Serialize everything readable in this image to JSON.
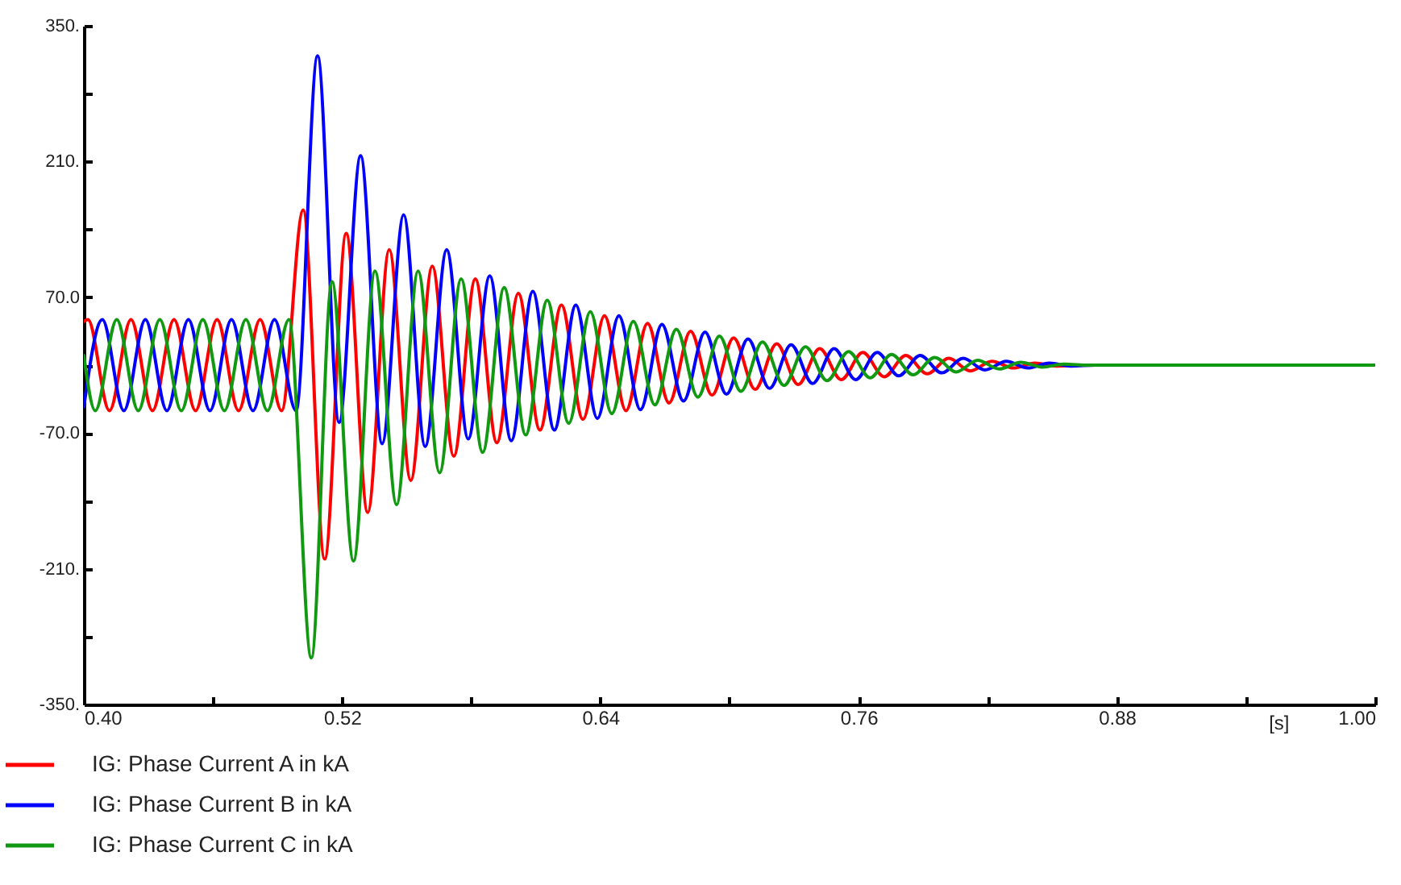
{
  "chart_data": {
    "type": "line",
    "xlabel": "[s]",
    "xlim": [
      0.4,
      1.0
    ],
    "xticks": [
      {
        "value": 0.4,
        "label": "0.40"
      },
      {
        "value": 0.46,
        "label": null
      },
      0.52,
      {
        "value": 0.58,
        "label": null
      },
      0.64,
      {
        "value": 0.7,
        "label": null
      },
      0.76,
      {
        "value": 0.82,
        "label": null
      },
      0.88,
      {
        "value": 0.94,
        "label": null
      },
      {
        "value": 1.0,
        "label": "1.00"
      }
    ],
    "ylim": [
      -350,
      350
    ],
    "yticks": [
      {
        "value": 350,
        "label": "350."
      },
      {
        "value": 280,
        "label": null
      },
      {
        "value": 210,
        "label": "210."
      },
      {
        "value": 140,
        "label": null
      },
      {
        "value": 70,
        "label": "70.0"
      },
      {
        "value": 0,
        "label": null
      },
      {
        "value": -70,
        "label": "-70.0"
      },
      {
        "value": -140,
        "label": null
      },
      {
        "value": -210,
        "label": "-210."
      },
      {
        "value": -280,
        "label": null
      },
      {
        "value": -350,
        "label": "-350."
      }
    ],
    "grid": false,
    "legend": "bottom",
    "marker": "none",
    "line_style": "solid",
    "series": [
      {
        "name": "IG: Phase Current A in kA",
        "color": "#ff0000",
        "x": [
          0.4,
          0.4019,
          0.4119,
          0.4219,
          0.4319,
          0.4419,
          0.4519,
          0.4619,
          0.4719,
          0.4819,
          0.4919,
          0.5019,
          0.5119,
          0.5219,
          0.5319,
          0.5419,
          0.5519,
          0.5619,
          0.5719,
          0.5819,
          0.5919,
          0.6019,
          0.6119,
          0.6219,
          0.6319,
          0.6419,
          0.6519,
          0.6619,
          0.6719,
          0.6819,
          0.6919,
          0.7019,
          0.7119,
          0.7219,
          0.7319,
          0.7419,
          0.7519,
          0.7619,
          0.7719,
          0.7819,
          0.7919,
          0.8019,
          0.8119,
          0.8219,
          0.8319,
          0.8419,
          0.8519,
          0.865,
          1.0
        ],
        "values": [
          45,
          47,
          -47,
          47,
          -47,
          47,
          -47,
          47,
          -47,
          47,
          -47,
          160,
          -200,
          136,
          -152,
          119,
          -119,
          102,
          -94,
          89,
          -80,
          74,
          -67,
          62,
          -56,
          51,
          -47,
          43,
          -39,
          35,
          -31,
          28,
          -25,
          22,
          -20,
          17,
          -15,
          13,
          -12,
          10,
          -9,
          7,
          -6,
          4,
          -3,
          2,
          -1,
          0,
          0
        ]
      },
      {
        "name": "IG: Phase Current B in kA",
        "color": "#0000ff",
        "x": [
          0.4,
          0.4086,
          0.4186,
          0.4286,
          0.4386,
          0.4486,
          0.4586,
          0.4686,
          0.4786,
          0.4886,
          0.4986,
          0.5086,
          0.5186,
          0.5286,
          0.5386,
          0.5486,
          0.5586,
          0.5686,
          0.5786,
          0.5886,
          0.5986,
          0.6086,
          0.6186,
          0.6286,
          0.6386,
          0.6486,
          0.6586,
          0.6686,
          0.6786,
          0.6886,
          0.6986,
          0.7086,
          0.7186,
          0.7286,
          0.7386,
          0.7486,
          0.7586,
          0.7686,
          0.7786,
          0.7886,
          0.7986,
          0.8086,
          0.8186,
          0.8286,
          0.8386,
          0.8486,
          0.8586,
          0.87,
          1.0
        ],
        "values": [
          -43,
          47,
          -47,
          47,
          -47,
          47,
          -47,
          47,
          -47,
          47,
          -47,
          319,
          -59,
          216,
          -81,
          155,
          -84,
          119,
          -76,
          92,
          -78,
          76,
          -67,
          62,
          -55,
          51,
          -46,
          42,
          -37,
          34,
          -30,
          27,
          -24,
          21,
          -19,
          17,
          -15,
          13,
          -11,
          10,
          -8,
          7,
          -5,
          4,
          -3,
          2,
          -1,
          0,
          0
        ]
      },
      {
        "name": "IG: Phase Current C in kA",
        "color": "#119911",
        "x": [
          0.4,
          0.4053,
          0.4153,
          0.4253,
          0.4353,
          0.4453,
          0.4553,
          0.4653,
          0.4753,
          0.4853,
          0.4953,
          0.5057,
          0.5153,
          0.5253,
          0.5353,
          0.5453,
          0.5553,
          0.5653,
          0.5753,
          0.5853,
          0.5953,
          0.6053,
          0.6153,
          0.6253,
          0.6353,
          0.6453,
          0.6553,
          0.6653,
          0.6753,
          0.6853,
          0.6953,
          0.7053,
          0.7153,
          0.7253,
          0.7353,
          0.7453,
          0.7553,
          0.7653,
          0.7753,
          0.7853,
          0.7953,
          0.8053,
          0.8153,
          0.8253,
          0.8353,
          0.8453,
          0.8553,
          0.867,
          1.0
        ],
        "values": [
          10,
          -47,
          47,
          -47,
          47,
          -47,
          47,
          -47,
          47,
          -47,
          47,
          -302,
          86,
          -202,
          97,
          -144,
          97,
          -111,
          89,
          -90,
          80,
          -72,
          67,
          -60,
          55,
          -50,
          45,
          -41,
          37,
          -33,
          30,
          -27,
          24,
          -21,
          19,
          -16,
          14,
          -13,
          11,
          -10,
          8,
          -7,
          5,
          -4,
          3,
          -2,
          1,
          0,
          0
        ]
      }
    ]
  }
}
